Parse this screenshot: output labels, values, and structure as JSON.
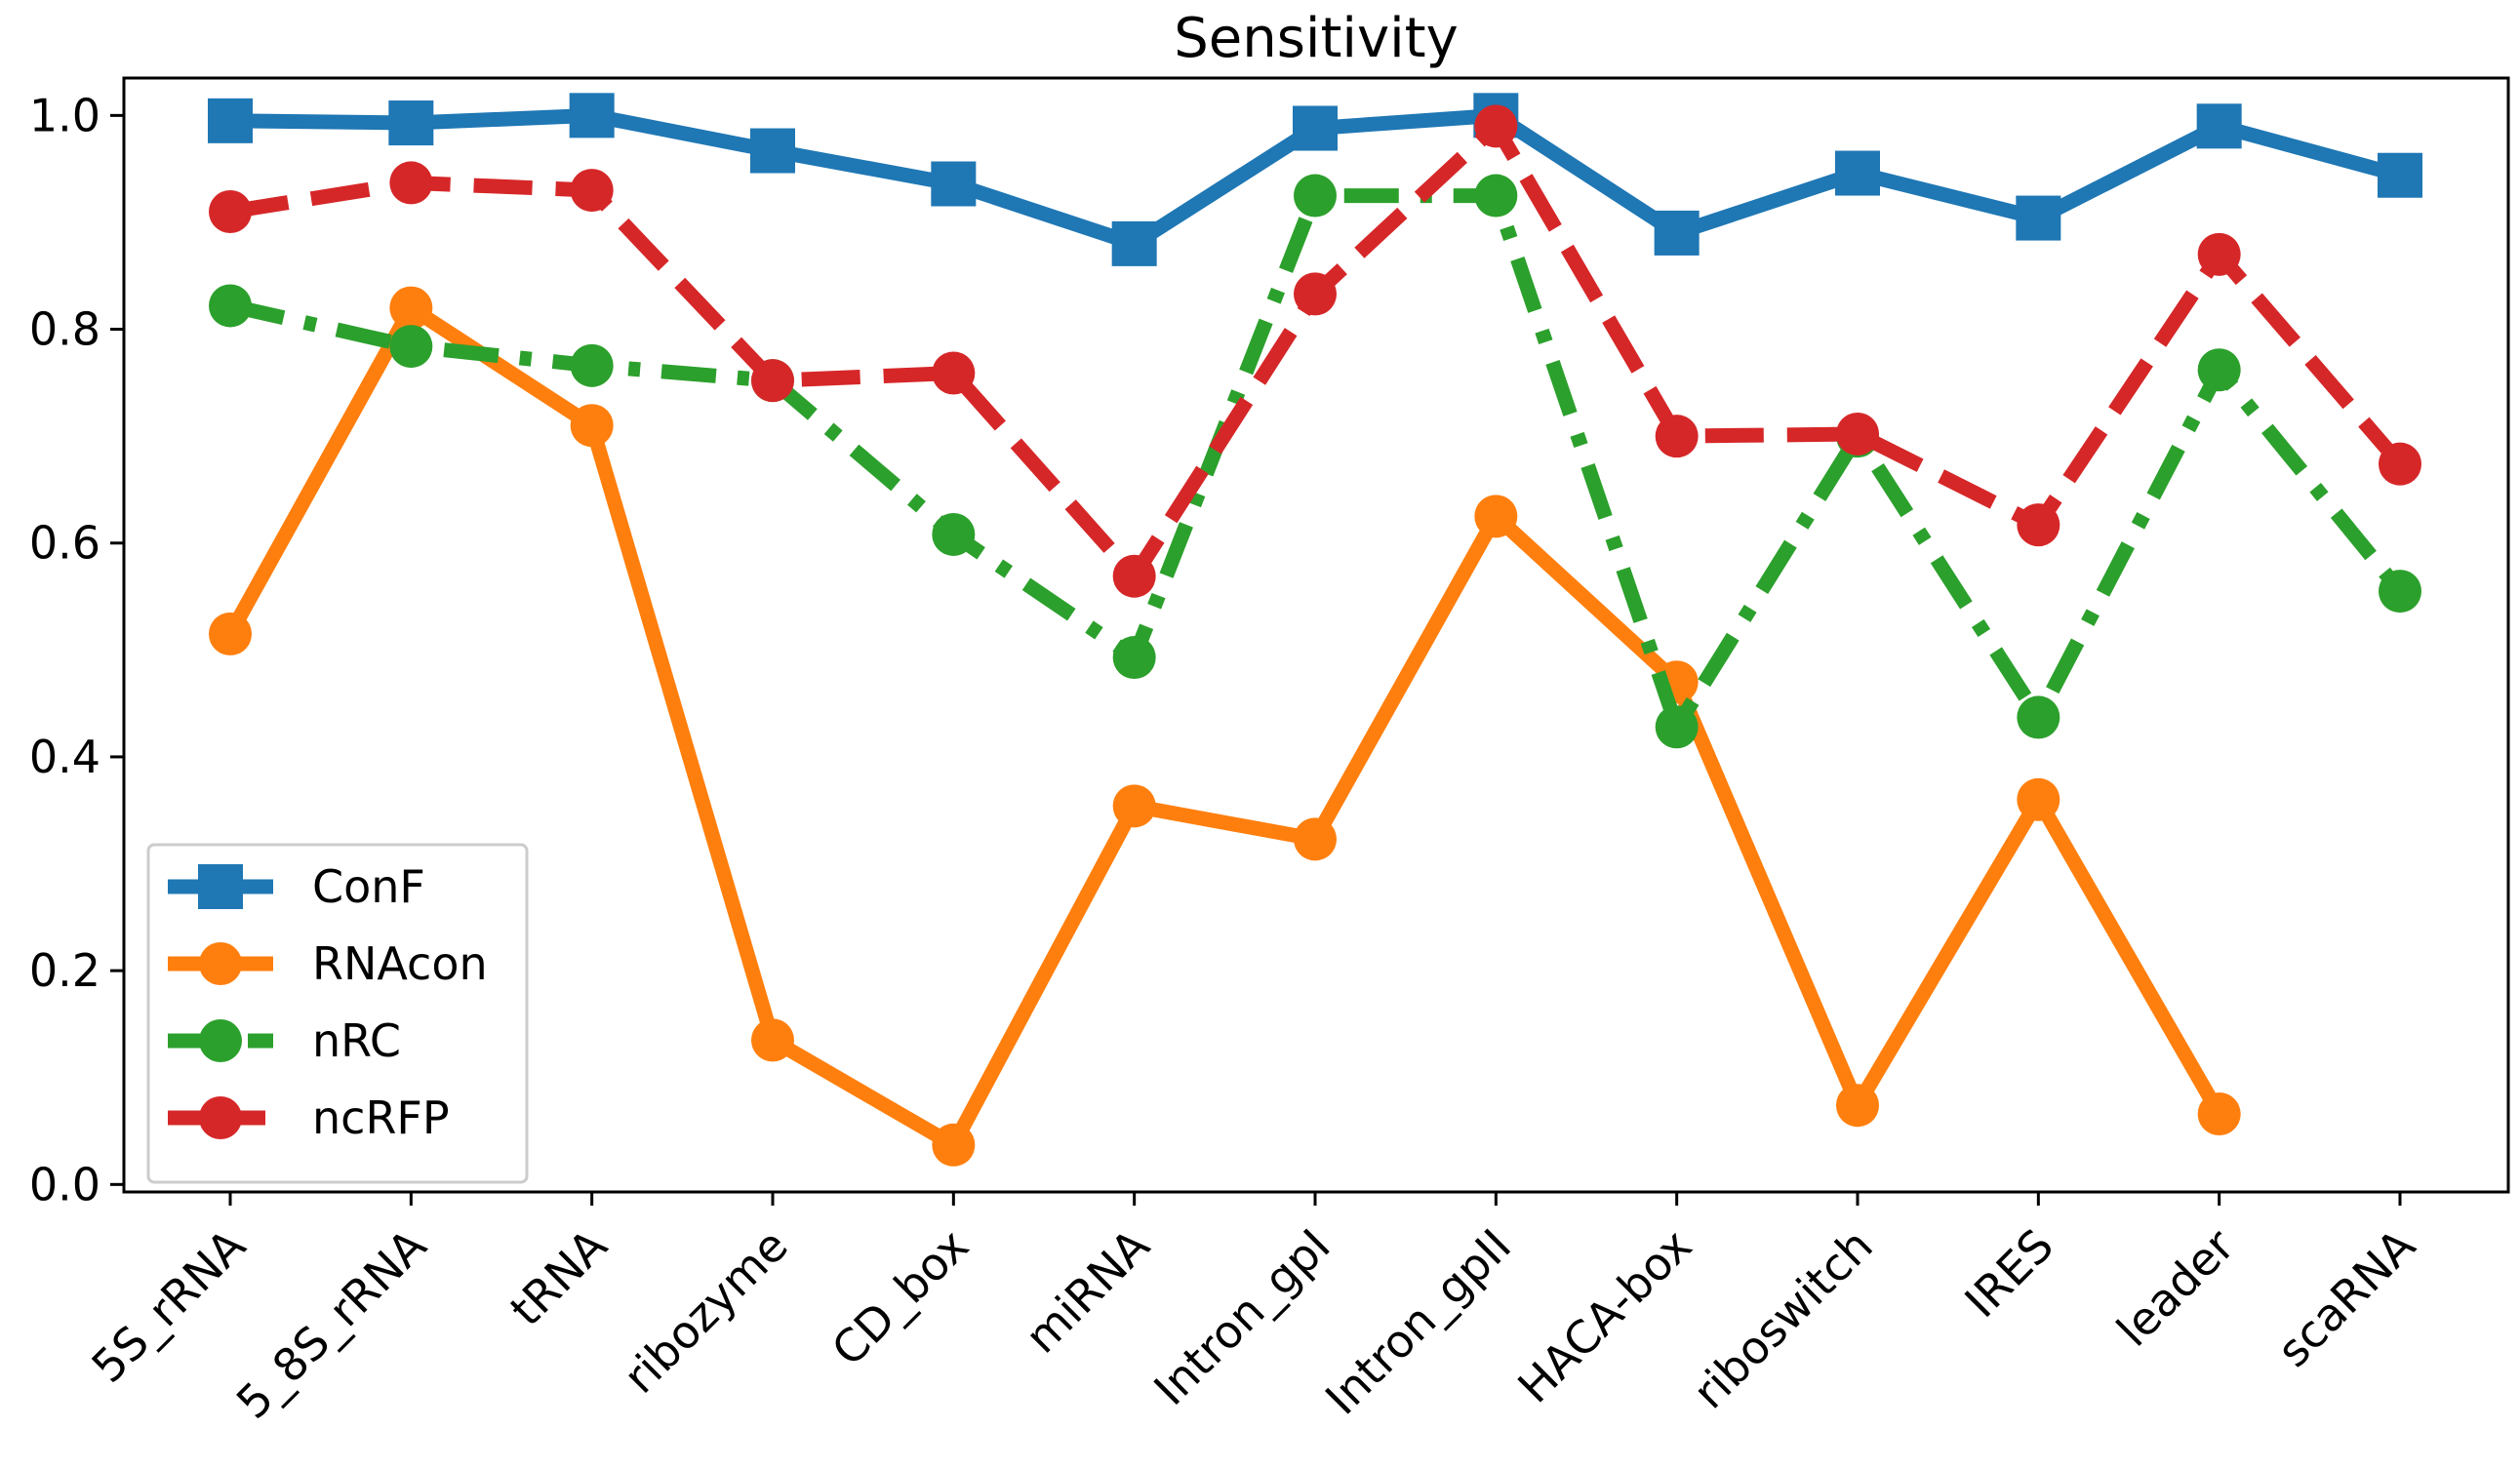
{
  "chart_data": {
    "type": "line",
    "title": "Sensitivity",
    "xlabel": "",
    "ylabel": "",
    "ylim": [
      -0.007,
      1.035
    ],
    "yticks": [
      "0.0",
      "0.2",
      "0.4",
      "0.6",
      "0.8",
      "1.0"
    ],
    "categories": [
      "5S_rRNA",
      "5_8S_rRNA",
      "tRNA",
      "ribozyme",
      "CD_box",
      "miRNA",
      "Intron_gpI",
      "Intron_gpII",
      "HACA-box",
      "riboswitch",
      "IRES",
      "leader",
      "scaRNA"
    ],
    "legend_position": "lower-left",
    "grid": false,
    "series": [
      {
        "name": "ConF",
        "color": "#1f77b4",
        "marker": "square",
        "linestyle": "solid",
        "values": [
          0.995,
          0.993,
          1.0,
          0.967,
          0.936,
          0.88,
          0.988,
          1.0,
          0.89,
          0.946,
          0.904,
          0.99,
          0.944
        ]
      },
      {
        "name": "RNAcon",
        "color": "#ff7f0e",
        "marker": "circle",
        "linestyle": "solid",
        "values": [
          0.515,
          0.82,
          0.71,
          0.135,
          0.037,
          0.354,
          0.323,
          0.625,
          0.47,
          0.074,
          0.36,
          0.066,
          null
        ]
      },
      {
        "name": "nRC",
        "color": "#2ca02c",
        "marker": "circle",
        "linestyle": "dashdot",
        "values": [
          0.822,
          0.784,
          0.766,
          0.752,
          0.608,
          0.493,
          0.925,
          0.925,
          0.428,
          0.7,
          0.437,
          0.762,
          0.555
        ]
      },
      {
        "name": "ncRFP",
        "color": "#d62728",
        "marker": "circle",
        "linestyle": "dashed",
        "values": [
          0.91,
          0.937,
          0.93,
          0.752,
          0.759,
          0.569,
          0.833,
          0.99,
          0.7,
          0.702,
          0.617,
          0.87,
          0.674
        ]
      }
    ]
  }
}
